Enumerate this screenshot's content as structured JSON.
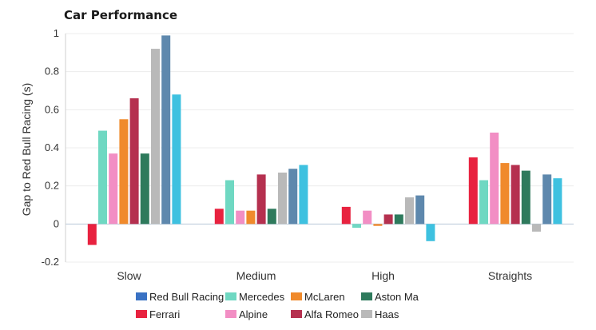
{
  "chart_data": {
    "type": "bar",
    "title": "Car Performance",
    "xlabel": "",
    "ylabel": "Gap to Red Bull Racing (s)",
    "ylim": [
      -0.2,
      1.0
    ],
    "yticks": [
      -0.2,
      0,
      0.2,
      0.4,
      0.6,
      0.8,
      1
    ],
    "ytick_labels": [
      "-0.2",
      "0",
      "0.2",
      "0.4",
      "0.6",
      "0.8",
      "1"
    ],
    "grid": true,
    "legend_position": "bottom",
    "categories": [
      "Slow",
      "Medium",
      "High",
      "Straights"
    ],
    "series": [
      {
        "name": "Red Bull Racing",
        "color": "#3a72c4",
        "values": [
          0,
          0,
          0,
          0
        ]
      },
      {
        "name": "Ferrari",
        "color": "#e8223f",
        "values": [
          -0.11,
          0.08,
          0.09,
          0.35
        ]
      },
      {
        "name": "Mercedes",
        "color": "#6fd8c2",
        "values": [
          0.49,
          0.23,
          -0.02,
          0.23
        ]
      },
      {
        "name": "Alpine",
        "color": "#f28ec4",
        "values": [
          0.37,
          0.07,
          0.07,
          0.48
        ]
      },
      {
        "name": "McLaren",
        "color": "#f08a2c",
        "values": [
          0.55,
          0.07,
          -0.01,
          0.32
        ]
      },
      {
        "name": "Alfa Romeo",
        "color": "#b5304f",
        "values": [
          0.66,
          0.26,
          0.05,
          0.31
        ]
      },
      {
        "name": "Aston Martin",
        "color": "#2e7a5c",
        "values": [
          0.37,
          0.08,
          0.05,
          0.28
        ]
      },
      {
        "name": "Haas",
        "color": "#b9b9b9",
        "values": [
          0.92,
          0.27,
          0.14,
          -0.04
        ]
      },
      {
        "name": "",
        "color": "#5e88ad",
        "values": [
          0.99,
          0.29,
          0.15,
          0.26
        ]
      },
      {
        "name": "",
        "color": "#3ec1e0",
        "values": [
          0.68,
          0.31,
          -0.09,
          0.24
        ]
      }
    ],
    "legend_display": [
      {
        "series_index": 0,
        "text": "Red Bull Racing"
      },
      {
        "series_index": 2,
        "text": "Mercedes"
      },
      {
        "series_index": 4,
        "text": "McLaren"
      },
      {
        "series_index": 6,
        "text": "Aston Ma"
      },
      {
        "series_index": 1,
        "text": "Ferrari"
      },
      {
        "series_index": 3,
        "text": "Alpine"
      },
      {
        "series_index": 5,
        "text": "Alfa Romeo"
      },
      {
        "series_index": 7,
        "text": "Haas"
      }
    ]
  }
}
